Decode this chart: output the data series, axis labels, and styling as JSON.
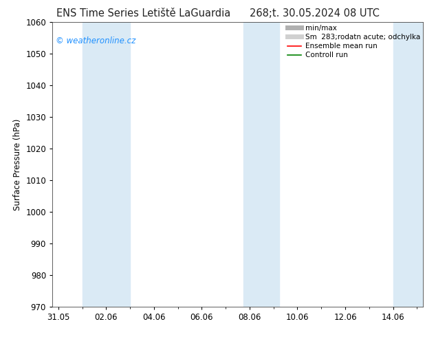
{
  "title_left": "ENS Time Series Letiště LaGuardia",
  "title_right": "268;t. 30.05.2024 08 UTC",
  "ylabel": "Surface Pressure (hPa)",
  "ylim": [
    970,
    1060
  ],
  "yticks": [
    970,
    980,
    990,
    1000,
    1010,
    1020,
    1030,
    1040,
    1050,
    1060
  ],
  "x_tick_labels": [
    "31.05",
    "02.06",
    "04.06",
    "06.06",
    "08.06",
    "10.06",
    "12.06",
    "14.06"
  ],
  "x_tick_positions": [
    0,
    2,
    4,
    6,
    8,
    10,
    12,
    14
  ],
  "xlim": [
    -0.25,
    15.25
  ],
  "shaded_regions": [
    {
      "x_start": 1.0,
      "x_end": 3.0,
      "color": "#daeaf5"
    },
    {
      "x_start": 7.75,
      "x_end": 9.25,
      "color": "#daeaf5"
    },
    {
      "x_start": 14.0,
      "x_end": 15.25,
      "color": "#daeaf5"
    }
  ],
  "watermark": "© weatheronline.cz",
  "watermark_color": "#1E90FF",
  "legend_entries": [
    {
      "label": "min/max",
      "color": "#b0b0b0",
      "lw": 5
    },
    {
      "label": "Sm  283;rodatn acute; odchylka",
      "color": "#d0d0d0",
      "lw": 5
    },
    {
      "label": "Ensemble mean run",
      "color": "#ff0000",
      "lw": 1.2
    },
    {
      "label": "Controll run",
      "color": "#008000",
      "lw": 1.2
    }
  ],
  "bg_color": "#ffffff",
  "plot_bg_color": "#ffffff",
  "tick_label_size": 8.5,
  "title_fontsize": 10.5,
  "legend_fontsize": 7.5
}
